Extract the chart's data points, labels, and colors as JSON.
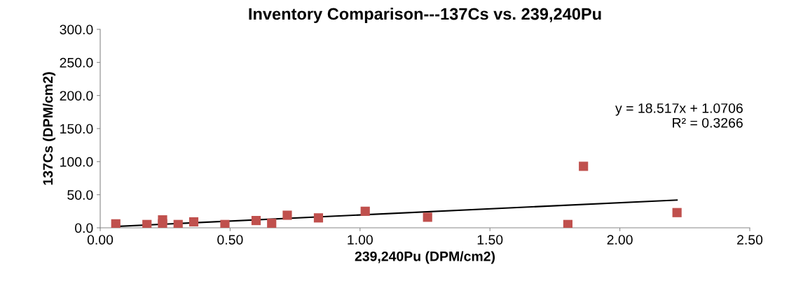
{
  "chart_data": {
    "type": "scatter",
    "title": "Inventory Comparison---137Cs vs. 239,240Pu",
    "xlabel": "239,240Pu (DPM/cm2)",
    "ylabel": "137Cs (DPM/cm2)",
    "xlim": [
      0,
      2.5
    ],
    "xticks": [
      {
        "value": 0,
        "label": "0.00"
      },
      {
        "value": 0.5,
        "label": "0.50"
      },
      {
        "value": 1,
        "label": "1.00"
      },
      {
        "value": 1.5,
        "label": "1.50"
      },
      {
        "value": 2,
        "label": "2.00"
      },
      {
        "value": 2.5,
        "label": "2.50"
      }
    ],
    "ylim": [
      0,
      300
    ],
    "yticks": [
      {
        "value": 0,
        "label": "0.0"
      },
      {
        "value": 50,
        "label": "50.0"
      },
      {
        "value": 100,
        "label": "100.0"
      },
      {
        "value": 150,
        "label": "150.0"
      },
      {
        "value": 200,
        "label": "200.0"
      },
      {
        "value": 250,
        "label": "250.0"
      },
      {
        "value": 300,
        "label": "300.0"
      }
    ],
    "grid": false,
    "series": [
      {
        "marker": "square",
        "color": "#c0504d",
        "x": [
          0.06,
          0.18,
          0.24,
          0.24,
          0.3,
          0.36,
          0.48,
          0.6,
          0.66,
          0.72,
          0.84,
          1.02,
          1.26,
          1.8,
          1.86,
          2.22
        ],
        "values": [
          6,
          5,
          12,
          6,
          5,
          9,
          5,
          11,
          7,
          19,
          15,
          25,
          16,
          5,
          93,
          23
        ]
      },
      {
        "type": "line",
        "color": "#000000",
        "x": [
          0.06,
          2.22
        ],
        "values": [
          2,
          42
        ]
      }
    ],
    "annotations": [
      "y = 18.517x + 1.0706\nR² = 0.3266"
    ]
  }
}
